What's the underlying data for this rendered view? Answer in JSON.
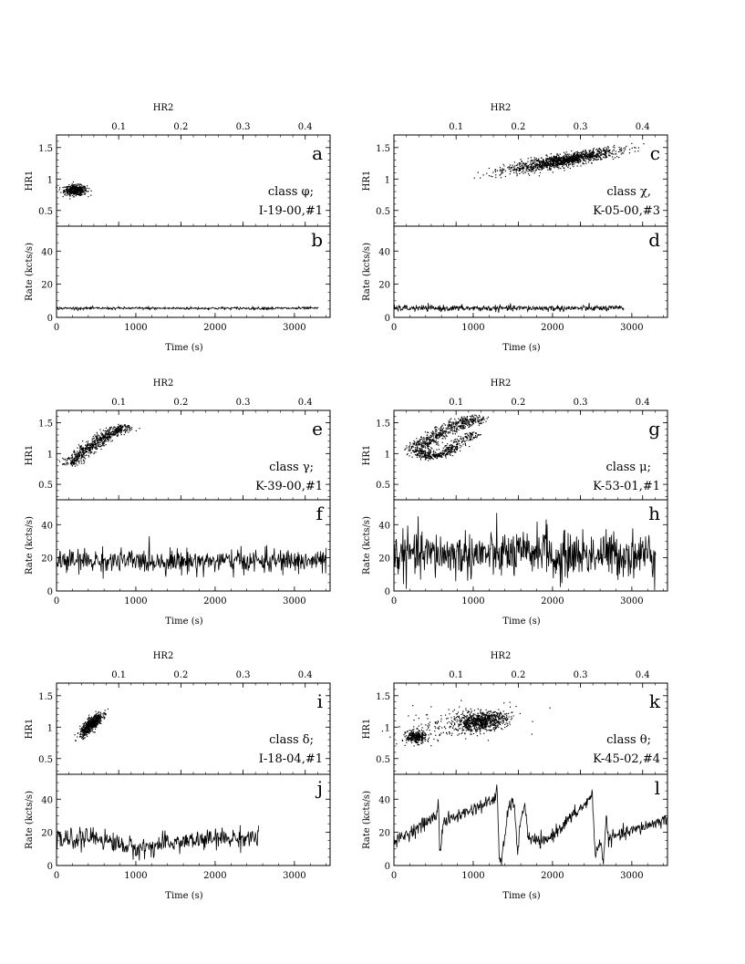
{
  "figure": {
    "hr2_axis_label": "HR2",
    "hr1_axis_label": "HR1",
    "rate_axis_label": "Rate (kcts/s)",
    "time_axis_label": "Time (s)"
  },
  "chart_data": [
    {
      "id": "phi",
      "type": "scatter",
      "panel": "a",
      "class_label": "class φ;",
      "obs_label": "I-19-00,#1",
      "x_label": "HR2",
      "y_label": "HR1",
      "xlim": [
        0,
        0.44
      ],
      "ylim": [
        0.25,
        1.7
      ],
      "x_ticks": [
        0.1,
        0.2,
        0.3,
        0.4
      ],
      "y_ticks": [
        0.5,
        1,
        1.5
      ],
      "clusters": [
        {
          "x": 0.03,
          "y": 0.83,
          "sx": 0.009,
          "sy": 0.04,
          "rho": 0.0,
          "n": 500
        }
      ]
    },
    {
      "id": "phi",
      "type": "line",
      "panel": "b",
      "x_label": "Time (s)",
      "y_label": "Rate (kcts/s)",
      "xlim": [
        0,
        3450
      ],
      "ylim": [
        0,
        55
      ],
      "x_ticks": [
        0,
        1000,
        2000,
        3000
      ],
      "y_ticks": [
        0,
        20,
        40
      ],
      "series": [
        {
          "x": [
            0,
            3300
          ],
          "y": [
            5.5,
            5.5
          ],
          "noise": 0.4
        }
      ]
    },
    {
      "id": "chi",
      "type": "scatter",
      "panel": "c",
      "class_label": "class χ,",
      "obs_label": "K-05-00,#3",
      "x_label": "HR2",
      "y_label": "HR1",
      "xlim": [
        0,
        0.44
      ],
      "ylim": [
        0.25,
        1.7
      ],
      "x_ticks": [
        0.1,
        0.2,
        0.3,
        0.4
      ],
      "y_ticks": [
        0.5,
        1,
        1.5
      ],
      "clusters": [
        {
          "x": 0.27,
          "y": 1.3,
          "sx": 0.045,
          "sy": 0.09,
          "rho": 0.85,
          "n": 1300
        }
      ]
    },
    {
      "id": "chi",
      "type": "line",
      "panel": "d",
      "x_label": "Time (s)",
      "y_label": "Rate (kcts/s)",
      "xlim": [
        0,
        3450
      ],
      "ylim": [
        0,
        55
      ],
      "x_ticks": [
        0,
        1000,
        2000,
        3000
      ],
      "y_ticks": [
        0,
        20,
        40
      ],
      "series": [
        {
          "x": [
            0,
            2900
          ],
          "y": [
            5.5,
            5.5
          ],
          "noise": 0.9
        }
      ]
    },
    {
      "id": "gamma",
      "type": "scatter",
      "panel": "e",
      "class_label": "class γ;",
      "obs_label": "K-39-00,#1",
      "x_label": "HR2",
      "y_label": "HR1",
      "xlim": [
        0,
        0.44
      ],
      "ylim": [
        0.25,
        1.7
      ],
      "x_ticks": [
        0.1,
        0.2,
        0.3,
        0.4
      ],
      "y_ticks": [
        0.5,
        1,
        1.5
      ],
      "tracks": [
        {
          "points": [
            [
              0.02,
              0.83
            ],
            [
              0.05,
              1.1
            ],
            [
              0.08,
              1.3
            ],
            [
              0.11,
              1.45
            ]
          ],
          "spread": 0.008,
          "n": 700
        }
      ]
    },
    {
      "id": "gamma",
      "type": "line",
      "panel": "f",
      "x_label": "Time (s)",
      "y_label": "Rate (kcts/s)",
      "xlim": [
        0,
        3450
      ],
      "ylim": [
        0,
        55
      ],
      "x_ticks": [
        0,
        1000,
        2000,
        3000
      ],
      "y_ticks": [
        0,
        20,
        40
      ],
      "series": [
        {
          "x": [
            0,
            3400
          ],
          "y": [
            18,
            18
          ],
          "noise": 3.5
        }
      ]
    },
    {
      "id": "mu",
      "type": "scatter",
      "panel": "g",
      "class_label": "class μ;",
      "obs_label": "K-53-01,#1",
      "x_label": "HR2",
      "y_label": "HR1",
      "xlim": [
        0,
        0.44
      ],
      "ylim": [
        0.25,
        1.7
      ],
      "x_ticks": [
        0.1,
        0.2,
        0.3,
        0.4
      ],
      "y_ticks": [
        0.5,
        1,
        1.5
      ],
      "tracks": [
        {
          "points": [
            [
              0.05,
              0.95
            ],
            [
              0.04,
              1.12
            ],
            [
              0.07,
              1.32
            ],
            [
              0.1,
              1.48
            ],
            [
              0.13,
              1.58
            ]
          ],
          "spread": 0.011,
          "n": 700
        },
        {
          "points": [
            [
              0.05,
              0.95
            ],
            [
              0.08,
              1.0
            ],
            [
              0.1,
              1.15
            ],
            [
              0.13,
              1.35
            ]
          ],
          "spread": 0.007,
          "n": 350
        }
      ]
    },
    {
      "id": "mu",
      "type": "line",
      "panel": "h",
      "x_label": "Time (s)",
      "y_label": "Rate (kcts/s)",
      "xlim": [
        0,
        3450
      ],
      "ylim": [
        0,
        55
      ],
      "x_ticks": [
        0,
        1000,
        2000,
        3000
      ],
      "y_ticks": [
        0,
        20,
        40
      ],
      "series": [
        {
          "x": [
            0,
            1700,
            1900,
            2050,
            2200,
            3300
          ],
          "y": [
            22,
            22,
            28,
            16,
            22,
            22
          ],
          "noise": 7
        }
      ]
    },
    {
      "id": "delta",
      "type": "scatter",
      "panel": "i",
      "class_label": "class δ;",
      "obs_label": "I-18-04,#1",
      "x_label": "HR2",
      "y_label": "HR1",
      "xlim": [
        0,
        0.44
      ],
      "ylim": [
        0.25,
        1.7
      ],
      "x_ticks": [
        0.1,
        0.2,
        0.3,
        0.4
      ],
      "y_ticks": [
        0.5,
        1,
        1.5
      ],
      "clusters": [
        {
          "x": 0.055,
          "y": 1.05,
          "sx": 0.009,
          "sy": 0.09,
          "rho": 0.8,
          "n": 600
        }
      ]
    },
    {
      "id": "delta",
      "type": "line",
      "panel": "j",
      "x_label": "Time (s)",
      "y_label": "Rate (kcts/s)",
      "xlim": [
        0,
        3450
      ],
      "ylim": [
        0,
        55
      ],
      "x_ticks": [
        0,
        1000,
        2000,
        3000
      ],
      "y_ticks": [
        0,
        20,
        40
      ],
      "series": [
        {
          "x": [
            0,
            500,
            1000,
            1500,
            2000,
            2550
          ],
          "y": [
            15,
            17,
            10,
            14,
            16,
            17
          ],
          "noise": 3
        }
      ]
    },
    {
      "id": "theta",
      "type": "scatter",
      "panel": "k",
      "class_label": "class θ;",
      "obs_label": "K-45-02,#4",
      "x_label": "HR2",
      "y_label": "HR1",
      "xlim": [
        0,
        0.44
      ],
      "ylim": [
        0.25,
        1.7
      ],
      "x_ticks": [
        0.1,
        0.2,
        0.3,
        0.4
      ],
      "y_ticks": [
        0.5,
        1,
        1.5
      ],
      "clusters": [
        {
          "x": 0.035,
          "y": 0.85,
          "sx": 0.008,
          "sy": 0.05,
          "rho": 0.0,
          "n": 300
        },
        {
          "x": 0.14,
          "y": 1.1,
          "sx": 0.02,
          "sy": 0.07,
          "rho": 0.3,
          "n": 700
        }
      ],
      "tracks": [
        {
          "points": [
            [
              0.04,
              0.9
            ],
            [
              0.08,
              1.05
            ],
            [
              0.12,
              1.12
            ],
            [
              0.17,
              1.18
            ]
          ],
          "spread": 0.035,
          "n": 250
        }
      ]
    },
    {
      "id": "theta",
      "type": "line",
      "panel": "l",
      "x_label": "Time (s)",
      "y_label": "Rate (kcts/s)",
      "xlim": [
        0,
        3450
      ],
      "ylim": [
        0,
        55
      ],
      "x_ticks": [
        0,
        1000,
        2000,
        3000
      ],
      "y_ticks": [
        0,
        20,
        40
      ],
      "series": [
        {
          "x": [
            0,
            540,
            560,
            580,
            620,
            1280,
            1300,
            1330,
            1360,
            1450,
            1520,
            1560,
            1600,
            1650,
            1700,
            1900,
            2480,
            2500,
            2540,
            2600,
            2640,
            2680,
            2700,
            3440
          ],
          "y": [
            14,
            30,
            41,
            6,
            26,
            40,
            50,
            3,
            3,
            36,
            38,
            4,
            30,
            36,
            16,
            14,
            40,
            46,
            5,
            15,
            3,
            30,
            16,
            28
          ],
          "noise": 2
        }
      ]
    }
  ]
}
